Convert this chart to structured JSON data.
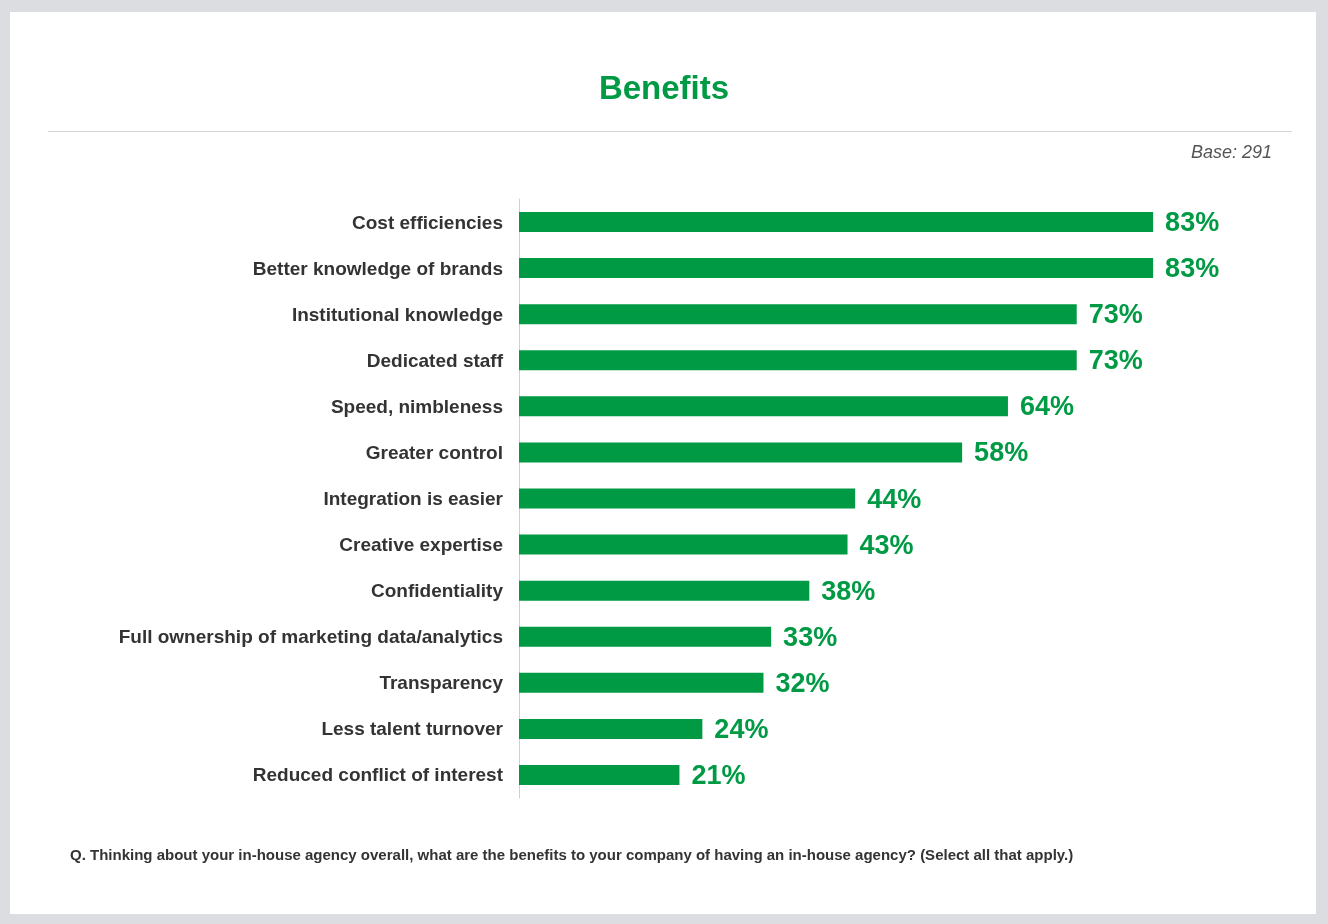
{
  "chart_data": {
    "type": "bar",
    "orientation": "horizontal",
    "title": "Benefits",
    "categories": [
      "Cost efficiencies",
      "Better knowledge of brands",
      "Institutional knowledge",
      "Dedicated staff",
      "Speed, nimbleness",
      "Greater control",
      "Integration is easier",
      "Creative expertise",
      "Confidentiality",
      "Full ownership of marketing data/analytics",
      "Transparency",
      "Less talent turnover",
      "Reduced conflict of interest"
    ],
    "values": [
      83,
      83,
      73,
      73,
      64,
      58,
      44,
      43,
      38,
      33,
      32,
      24,
      21
    ],
    "value_labels": [
      "83%",
      "83%",
      "73%",
      "73%",
      "64%",
      "58%",
      "44%",
      "43%",
      "38%",
      "33%",
      "32%",
      "24%",
      "21%"
    ],
    "color": "#009a44",
    "annotations": [
      "Base: 291",
      "Q. Thinking about your in-house agency overall, what are the benefits to your company of having an in-house agency? (Select all that apply.)"
    ]
  }
}
